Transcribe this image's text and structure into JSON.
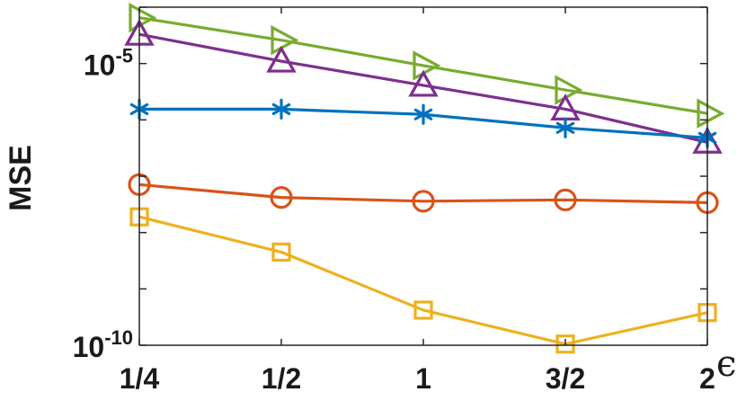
{
  "chart_data": {
    "type": "line",
    "title": "",
    "xlabel": "ϵ",
    "ylabel": "MSE",
    "categories": [
      "1/4",
      "1/2",
      "1",
      "3/2",
      "2"
    ],
    "y_scale": "log",
    "ylim": [
      1e-10,
      0.0001
    ],
    "y_ticks": [
      {
        "value": 1e-10,
        "base": "10",
        "exp": "-10"
      },
      {
        "value": 1e-05,
        "base": "10",
        "exp": "-5"
      }
    ],
    "grid": false,
    "legend": "none",
    "series": [
      {
        "marker": "triangle-right",
        "color": "#77ac30",
        "values": [
          6.5e-05,
          2.6e-05,
          9.2e-06,
          3.4e-06,
          1.3e-06
        ]
      },
      {
        "marker": "triangle-up",
        "color": "#7e2f8e",
        "values": [
          3.3e-05,
          1.1e-05,
          4.1e-06,
          1.55e-06,
          4e-07
        ]
      },
      {
        "marker": "asterisk",
        "color": "#0072bd",
        "values": [
          1.55e-06,
          1.55e-06,
          1.25e-06,
          7.2e-07,
          4.8e-07
        ]
      },
      {
        "marker": "circle",
        "color": "#d95319",
        "values": [
          7.1e-08,
          4.2e-08,
          3.6e-08,
          3.8e-08,
          3.4e-08
        ]
      },
      {
        "marker": "square",
        "color": "#edb120",
        "values": [
          1.9e-08,
          4.5e-09,
          4.2e-10,
          1.05e-10,
          3.8e-10
        ]
      }
    ]
  }
}
